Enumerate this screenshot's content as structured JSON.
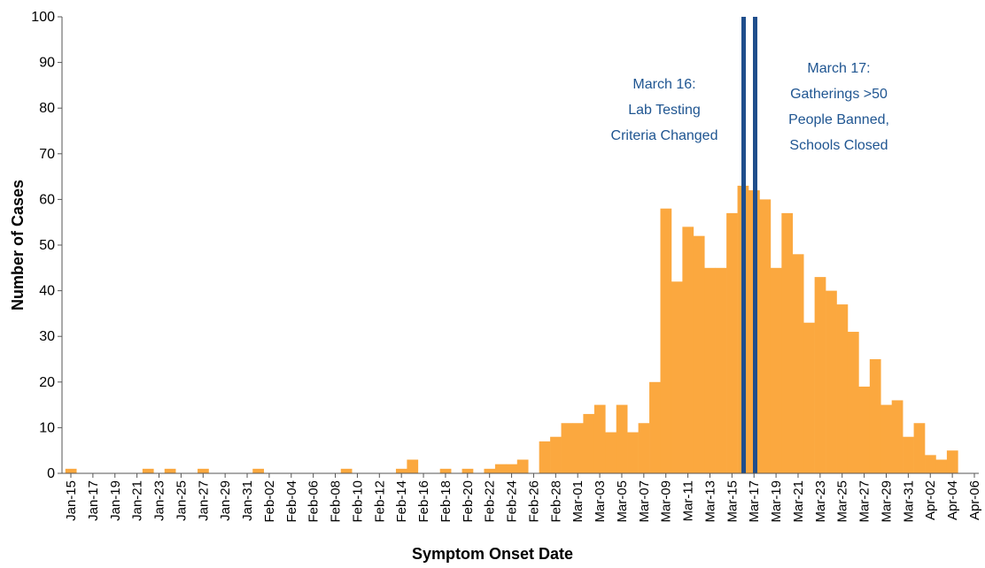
{
  "chart_data": {
    "type": "bar",
    "x_label": "Symptom Onset Date",
    "y_label": "Number of Cases",
    "color": "#fba83f",
    "categories": [
      "Jan-15",
      null,
      "Jan-17",
      null,
      "Jan-19",
      null,
      "Jan-21",
      null,
      "Jan-23",
      null,
      "Jan-25",
      null,
      "Jan-27",
      null,
      "Jan-29",
      null,
      "Jan-31",
      null,
      "Feb-02",
      null,
      "Feb-04",
      null,
      "Feb-06",
      null,
      "Feb-08",
      null,
      "Feb-10",
      null,
      "Feb-12",
      null,
      "Feb-14",
      null,
      "Feb-16",
      null,
      "Feb-18",
      null,
      "Feb-20",
      null,
      "Feb-22",
      null,
      "Feb-24",
      null,
      "Feb-26",
      null,
      "Feb-28",
      null,
      "Mar-01",
      null,
      "Mar-03",
      null,
      "Mar-05",
      null,
      "Mar-07",
      null,
      "Mar-09",
      null,
      "Mar-11",
      null,
      "Mar-13",
      null,
      "Mar-15",
      null,
      "Mar-17",
      null,
      "Mar-19",
      null,
      "Mar-21",
      null,
      "Mar-23",
      null,
      "Mar-25",
      null,
      "Mar-27",
      null,
      "Mar-29",
      null,
      "Mar-31",
      null,
      "Apr-02",
      null,
      "Apr-04",
      null,
      "Apr-06"
    ],
    "values": [
      1,
      0,
      0,
      0,
      0,
      0,
      0,
      1,
      0,
      1,
      0,
      0,
      1,
      0,
      0,
      0,
      0,
      1,
      0,
      0,
      0,
      0,
      0,
      0,
      0,
      1,
      0,
      0,
      0,
      0,
      1,
      3,
      0,
      0,
      1,
      0,
      1,
      0,
      1,
      2,
      2,
      3,
      0,
      7,
      8,
      11,
      11,
      13,
      15,
      9,
      15,
      9,
      11,
      20,
      58,
      42,
      54,
      52,
      45,
      45,
      57,
      63,
      62,
      60,
      45,
      57,
      48,
      33,
      43,
      40,
      37,
      31,
      19,
      25,
      15,
      16,
      8,
      11,
      4,
      3,
      5,
      0,
      0
    ],
    "ylim": [
      0,
      100
    ],
    "yticks": [
      0,
      10,
      20,
      30,
      40,
      50,
      60,
      70,
      80,
      90,
      100
    ],
    "annotations": [
      {
        "lines": [
          "March 16:",
          "Lab Testing",
          "Criteria Changed"
        ]
      },
      {
        "lines": [
          "March 17:",
          "Gatherings >50",
          "People Banned,",
          "Schools Closed"
        ]
      }
    ]
  }
}
